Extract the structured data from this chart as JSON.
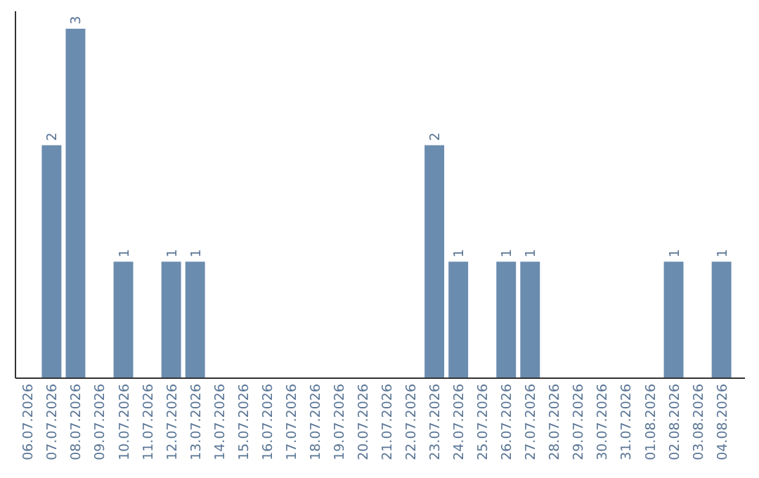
{
  "chart_data": {
    "type": "bar",
    "categories": [
      "06.07.2026",
      "07.07.2026",
      "08.07.2026",
      "09.07.2026",
      "10.07.2026",
      "11.07.2026",
      "12.07.2026",
      "13.07.2026",
      "14.07.2026",
      "15.07.2026",
      "16.07.2026",
      "17.07.2026",
      "18.07.2026",
      "19.07.2026",
      "20.07.2026",
      "21.07.2026",
      "22.07.2026",
      "23.07.2026",
      "24.07.2026",
      "25.07.2026",
      "26.07.2026",
      "27.07.2026",
      "28.07.2026",
      "29.07.2026",
      "30.07.2026",
      "31.07.2026",
      "01.08.2026",
      "02.08.2026",
      "03.08.2026",
      "04.08.2026"
    ],
    "values": [
      0,
      2,
      3,
      0,
      1,
      0,
      1,
      1,
      0,
      0,
      0,
      0,
      0,
      0,
      0,
      0,
      0,
      2,
      1,
      0,
      1,
      1,
      0,
      0,
      0,
      0,
      0,
      1,
      0,
      1
    ],
    "value_labels": [
      null,
      "2",
      "3",
      null,
      "1",
      null,
      "1",
      "1",
      null,
      null,
      null,
      null,
      null,
      null,
      null,
      null,
      null,
      "2",
      "1",
      null,
      "1",
      "1",
      null,
      null,
      null,
      null,
      null,
      "1",
      null,
      "1"
    ],
    "color": "#6a8caf",
    "ylim": [
      0,
      3.15
    ],
    "tick_labels": "x"
  }
}
